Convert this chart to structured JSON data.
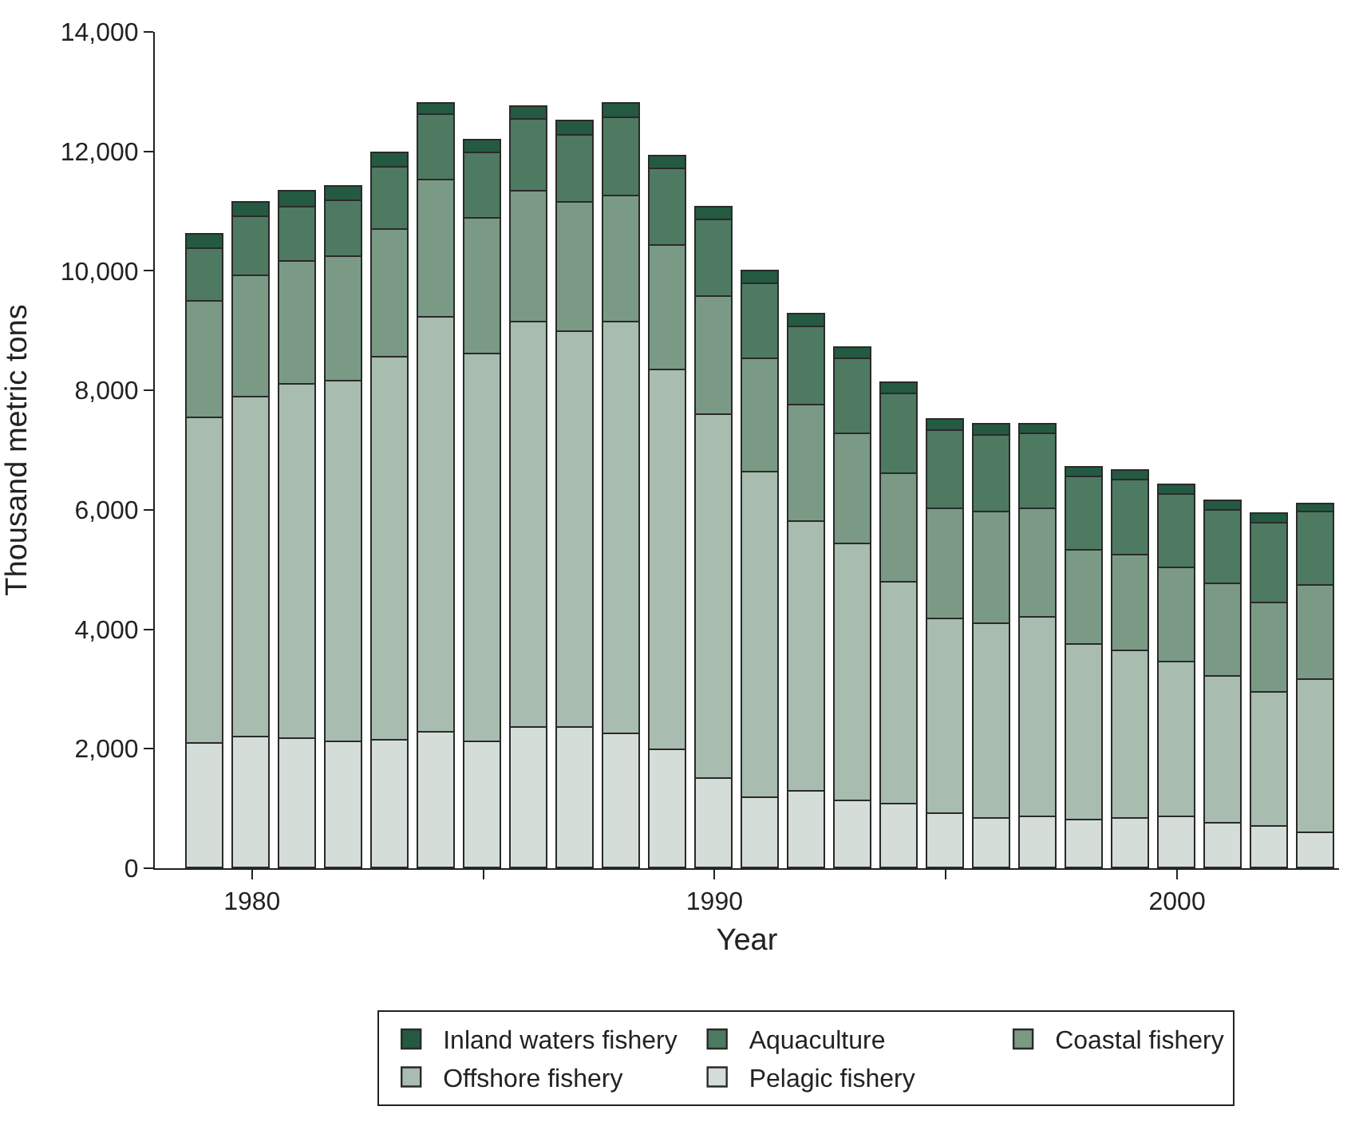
{
  "chart_data": {
    "type": "bar",
    "stacked": true,
    "xlabel": "Year",
    "ylabel": "Thousand metric tons",
    "x": [
      1979,
      1980,
      1981,
      1982,
      1983,
      1984,
      1985,
      1986,
      1987,
      1988,
      1989,
      1990,
      1991,
      1992,
      1993,
      1994,
      1995,
      1996,
      1997,
      1998,
      1999,
      2000,
      2001,
      2002,
      2003
    ],
    "series": [
      {
        "name": "Pelagic fishery",
        "color": "#d4ddd8",
        "values": [
          2080,
          2180,
          2170,
          2100,
          2130,
          2280,
          2120,
          2340,
          2350,
          2250,
          1980,
          1500,
          1180,
          1270,
          1130,
          1060,
          920,
          820,
          860,
          810,
          830,
          850,
          750,
          690,
          600
        ]
      },
      {
        "name": "Offshore fishery",
        "color": "#a8bcaf",
        "values": [
          5450,
          5690,
          5930,
          6050,
          6430,
          6950,
          6490,
          6790,
          6630,
          6890,
          6350,
          6080,
          5440,
          4530,
          4290,
          3730,
          3260,
          3260,
          3340,
          2930,
          2810,
          2600,
          2460,
          2250,
          2550
        ]
      },
      {
        "name": "Coastal fishery",
        "color": "#7a9a86",
        "values": [
          1950,
          2050,
          2050,
          2080,
          2130,
          2280,
          2270,
          2210,
          2160,
          2120,
          2100,
          1980,
          1900,
          1960,
          1840,
          1810,
          1820,
          1890,
          1800,
          1580,
          1600,
          1580,
          1540,
          1490,
          1570
        ]
      },
      {
        "name": "Aquaculture",
        "color": "#4e7a62",
        "values": [
          890,
          980,
          910,
          950,
          1050,
          1100,
          1080,
          1190,
          1120,
          1310,
          1280,
          1290,
          1260,
          1310,
          1270,
          1330,
          1330,
          1280,
          1260,
          1220,
          1240,
          1210,
          1240,
          1340,
          1250
        ]
      },
      {
        "name": "Inland waters fishery",
        "color": "#245a42",
        "values": [
          230,
          230,
          270,
          220,
          240,
          190,
          220,
          210,
          240,
          230,
          210,
          200,
          220,
          210,
          180,
          190,
          170,
          180,
          170,
          160,
          160,
          160,
          160,
          160,
          130
        ]
      }
    ],
    "xlim": [
      1977.9,
      2003.5
    ],
    "xticks": [
      1980,
      {
        "value": 1985,
        "label": null
      },
      1990,
      {
        "value": 1995,
        "label": null
      },
      2000
    ],
    "ylim": [
      0,
      14000
    ],
    "yticks": [
      {
        "value": 0,
        "label": "0"
      },
      {
        "value": 2000,
        "label": "2,000"
      },
      {
        "value": 4000,
        "label": "4,000"
      },
      {
        "value": 6000,
        "label": "6,000"
      },
      {
        "value": 8000,
        "label": "8,000"
      },
      {
        "value": 10000,
        "label": "10,000"
      },
      {
        "value": 12000,
        "label": "12,000"
      },
      {
        "value": 14000,
        "label": "14,000"
      }
    ],
    "legend": "bottom"
  }
}
